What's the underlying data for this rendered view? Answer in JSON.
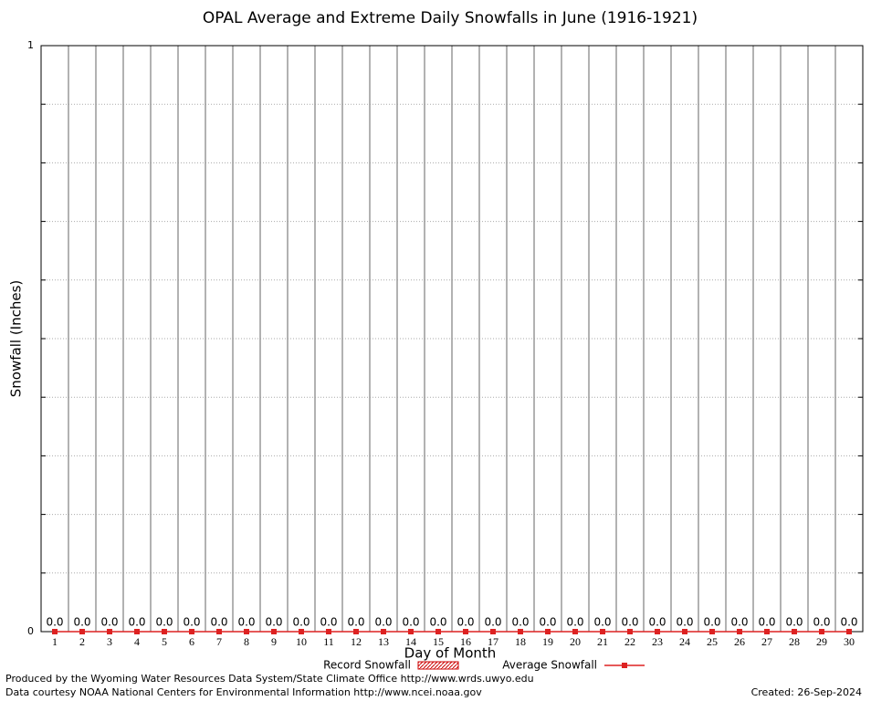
{
  "chart_data": {
    "type": "bar",
    "title": "OPAL Average and Extreme Daily Snowfalls in June (1916-1921)",
    "x_label": "Day of Month",
    "y_label": "Snowfall (Inches)",
    "categories": [
      "1",
      "2",
      "3",
      "4",
      "5",
      "6",
      "7",
      "8",
      "9",
      "10",
      "11",
      "12",
      "13",
      "14",
      "15",
      "16",
      "17",
      "18",
      "19",
      "20",
      "21",
      "22",
      "23",
      "24",
      "25",
      "26",
      "27",
      "28",
      "29",
      "30"
    ],
    "series": [
      {
        "name": "Record Snowfall",
        "color": "#cc0000",
        "type": "bar",
        "values": [
          0,
          0,
          0,
          0,
          0,
          0,
          0,
          0,
          0,
          0,
          0,
          0,
          0,
          0,
          0,
          0,
          0,
          0,
          0,
          0,
          0,
          0,
          0,
          0,
          0,
          0,
          0,
          0,
          0,
          0
        ],
        "value_labels": [
          "0.0",
          "0.0",
          "0.0",
          "0.0",
          "0.0",
          "0.0",
          "0.0",
          "0.0",
          "0.0",
          "0.0",
          "0.0",
          "0.0",
          "0.0",
          "0.0",
          "0.0",
          "0.0",
          "0.0",
          "0.0",
          "0.0",
          "0.0",
          "0.0",
          "0.0",
          "0.0",
          "0.0",
          "0.0",
          "0.0",
          "0.0",
          "0.0",
          "0.0",
          "0.0"
        ]
      },
      {
        "name": "Average Snowfall",
        "color": "#dd2222",
        "type": "line",
        "values": [
          0,
          0,
          0,
          0,
          0,
          0,
          0,
          0,
          0,
          0,
          0,
          0,
          0,
          0,
          0,
          0,
          0,
          0,
          0,
          0,
          0,
          0,
          0,
          0,
          0,
          0,
          0,
          0,
          0,
          0
        ]
      }
    ],
    "ylim": [
      0,
      1
    ],
    "yticks": [
      0,
      1
    ],
    "yminorticks": [
      0.1,
      0.2,
      0.3,
      0.4,
      0.5,
      0.6,
      0.7,
      0.8,
      0.9
    ],
    "grid": true,
    "legend": "bottom",
    "footer": [
      "Produced by the Wyoming Water Resources Data System/State Climate Office http://www.wrds.uwyo.edu",
      "Data courtesy NOAA National Centers for Environmental Information http://www.ncei.noaa.gov"
    ],
    "created": "Created:  26-Sep-2024"
  }
}
